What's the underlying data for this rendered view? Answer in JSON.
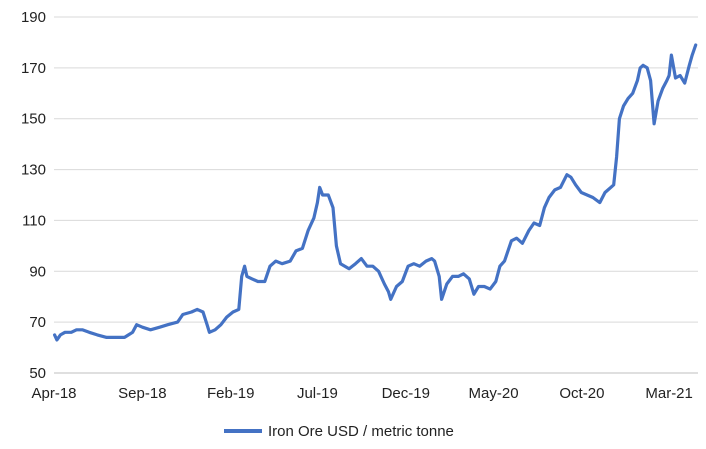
{
  "chart_data": {
    "type": "line",
    "title": "",
    "xlabel": "",
    "ylabel": "",
    "ylim": [
      50,
      190
    ],
    "yticks": [
      50,
      70,
      90,
      110,
      130,
      150,
      170,
      190
    ],
    "xticks": [
      "Apr-18",
      "Sep-18",
      "Feb-19",
      "Jul-19",
      "Dec-19",
      "May-20",
      "Oct-20",
      "Mar-21"
    ],
    "grid": "horizontal",
    "legend": "bottom",
    "series": [
      {
        "name": "Iron Ore USD / metric tonne",
        "color": "#4472C4",
        "points": [
          [
            "2018-04-02",
            65
          ],
          [
            "2018-04-06",
            63
          ],
          [
            "2018-04-12",
            65
          ],
          [
            "2018-04-20",
            66
          ],
          [
            "2018-05-01",
            66
          ],
          [
            "2018-05-10",
            67
          ],
          [
            "2018-05-20",
            67
          ],
          [
            "2018-06-01",
            66
          ],
          [
            "2018-06-15",
            65
          ],
          [
            "2018-07-01",
            64
          ],
          [
            "2018-07-15",
            64
          ],
          [
            "2018-08-01",
            64
          ],
          [
            "2018-08-15",
            66
          ],
          [
            "2018-08-22",
            69
          ],
          [
            "2018-09-01",
            68
          ],
          [
            "2018-09-15",
            67
          ],
          [
            "2018-10-01",
            68
          ],
          [
            "2018-10-15",
            69
          ],
          [
            "2018-11-01",
            70
          ],
          [
            "2018-11-10",
            73
          ],
          [
            "2018-11-25",
            74
          ],
          [
            "2018-12-05",
            75
          ],
          [
            "2018-12-15",
            74
          ],
          [
            "2018-12-22",
            69
          ],
          [
            "2018-12-26",
            66
          ],
          [
            "2019-01-05",
            67
          ],
          [
            "2019-01-15",
            69
          ],
          [
            "2019-01-25",
            72
          ],
          [
            "2019-02-05",
            74
          ],
          [
            "2019-02-15",
            75
          ],
          [
            "2019-02-20",
            88
          ],
          [
            "2019-02-25",
            92
          ],
          [
            "2019-03-01",
            88
          ],
          [
            "2019-03-10",
            87
          ],
          [
            "2019-03-20",
            86
          ],
          [
            "2019-04-01",
            86
          ],
          [
            "2019-04-10",
            92
          ],
          [
            "2019-04-20",
            94
          ],
          [
            "2019-05-01",
            93
          ],
          [
            "2019-05-15",
            94
          ],
          [
            "2019-05-25",
            98
          ],
          [
            "2019-06-05",
            99
          ],
          [
            "2019-06-15",
            106
          ],
          [
            "2019-06-25",
            111
          ],
          [
            "2019-07-01",
            117
          ],
          [
            "2019-07-05",
            123
          ],
          [
            "2019-07-10",
            120
          ],
          [
            "2019-07-20",
            120
          ],
          [
            "2019-07-28",
            115
          ],
          [
            "2019-08-03",
            100
          ],
          [
            "2019-08-10",
            93
          ],
          [
            "2019-08-25",
            91
          ],
          [
            "2019-09-05",
            93
          ],
          [
            "2019-09-15",
            95
          ],
          [
            "2019-09-25",
            92
          ],
          [
            "2019-10-05",
            92
          ],
          [
            "2019-10-15",
            90
          ],
          [
            "2019-10-25",
            85
          ],
          [
            "2019-11-01",
            82
          ],
          [
            "2019-11-05",
            79
          ],
          [
            "2019-11-15",
            84
          ],
          [
            "2019-11-25",
            86
          ],
          [
            "2019-12-05",
            92
          ],
          [
            "2019-12-15",
            93
          ],
          [
            "2019-12-25",
            92
          ],
          [
            "2020-01-05",
            94
          ],
          [
            "2020-01-15",
            95
          ],
          [
            "2020-01-20",
            94
          ],
          [
            "2020-01-28",
            88
          ],
          [
            "2020-02-01",
            79
          ],
          [
            "2020-02-10",
            85
          ],
          [
            "2020-02-20",
            88
          ],
          [
            "2020-03-01",
            88
          ],
          [
            "2020-03-10",
            89
          ],
          [
            "2020-03-20",
            87
          ],
          [
            "2020-03-28",
            81
          ],
          [
            "2020-04-05",
            84
          ],
          [
            "2020-04-15",
            84
          ],
          [
            "2020-04-25",
            83
          ],
          [
            "2020-05-05",
            86
          ],
          [
            "2020-05-12",
            92
          ],
          [
            "2020-05-20",
            94
          ],
          [
            "2020-06-01",
            102
          ],
          [
            "2020-06-10",
            103
          ],
          [
            "2020-06-20",
            101
          ],
          [
            "2020-07-01",
            106
          ],
          [
            "2020-07-10",
            109
          ],
          [
            "2020-07-20",
            108
          ],
          [
            "2020-07-28",
            115
          ],
          [
            "2020-08-05",
            119
          ],
          [
            "2020-08-15",
            122
          ],
          [
            "2020-08-25",
            123
          ],
          [
            "2020-09-05",
            128
          ],
          [
            "2020-09-12",
            127
          ],
          [
            "2020-09-20",
            124
          ],
          [
            "2020-09-30",
            121
          ],
          [
            "2020-10-10",
            120
          ],
          [
            "2020-10-20",
            119
          ],
          [
            "2020-11-01",
            117
          ],
          [
            "2020-11-10",
            121
          ],
          [
            "2020-11-20",
            123
          ],
          [
            "2020-11-25",
            124
          ],
          [
            "2020-11-30",
            135
          ],
          [
            "2020-12-05",
            150
          ],
          [
            "2020-12-12",
            155
          ],
          [
            "2020-12-20",
            158
          ],
          [
            "2020-12-28",
            160
          ],
          [
            "2021-01-05",
            165
          ],
          [
            "2021-01-10",
            170
          ],
          [
            "2021-01-15",
            171
          ],
          [
            "2021-01-22",
            170
          ],
          [
            "2021-01-28",
            165
          ],
          [
            "2021-02-03",
            148
          ],
          [
            "2021-02-10",
            157
          ],
          [
            "2021-02-18",
            162
          ],
          [
            "2021-02-25",
            165
          ],
          [
            "2021-03-01",
            167
          ],
          [
            "2021-03-05",
            175
          ],
          [
            "2021-03-12",
            166
          ],
          [
            "2021-03-20",
            167
          ],
          [
            "2021-03-28",
            164
          ],
          [
            "2021-04-05",
            171
          ],
          [
            "2021-04-10",
            175
          ],
          [
            "2021-04-16",
            179
          ]
        ]
      }
    ]
  }
}
